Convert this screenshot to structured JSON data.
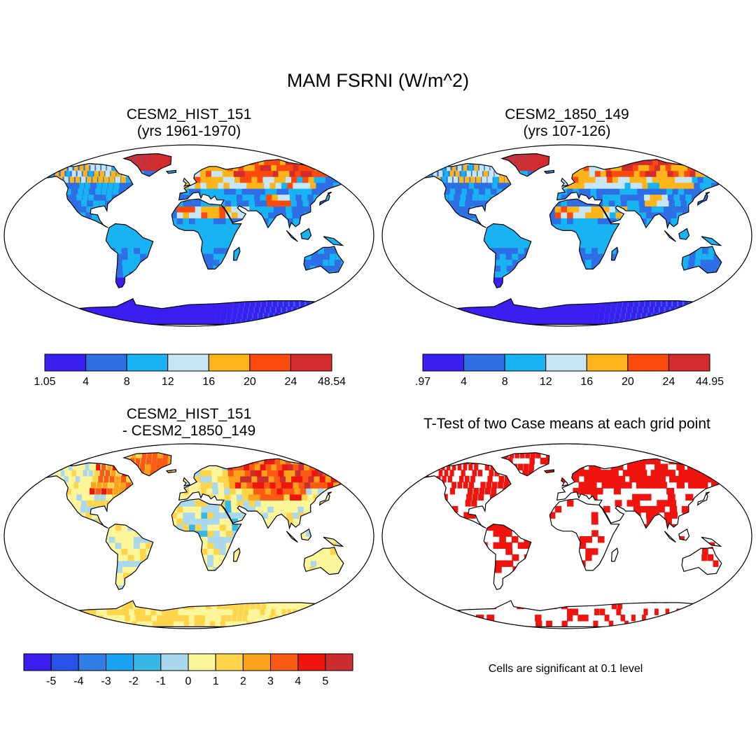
{
  "figure": {
    "title": "MAM FSRNI (W/m^2)",
    "footnote": "Cells are significant at 0.1 level"
  },
  "panels": [
    {
      "id": "hist",
      "title_line1": "CESM2_HIST_151",
      "title_line2": "(yrs 1961-1970)",
      "colorbar": {
        "colors": [
          "#3a1ff0",
          "#2f6fe6",
          "#18b3f2",
          "#c6e6f4",
          "#fbb419",
          "#fc4a0c",
          "#d42b2c"
        ],
        "labels": [
          "1.05",
          "4",
          "8",
          "12",
          "16",
          "20",
          "24",
          "48.54"
        ]
      }
    },
    {
      "id": "pi",
      "title_line1": "CESM2_1850_149",
      "title_line2": "(yrs 107-126)",
      "colorbar": {
        "colors": [
          "#3a1ff0",
          "#2f6fe6",
          "#18b3f2",
          "#c6e6f4",
          "#fbb419",
          "#fc4a0c",
          "#d42b2c"
        ],
        "labels": [
          ".97",
          "4",
          "8",
          "12",
          "16",
          "20",
          "24",
          "44.95"
        ]
      }
    },
    {
      "id": "diff",
      "title_line1": "CESM2_HIST_151",
      "title_line2": "- CESM2_1850_149",
      "colorbar": {
        "colors": [
          "#3a1ff0",
          "#2b52e6",
          "#2f7ee8",
          "#19a3f0",
          "#36b7e6",
          "#a9d8ef",
          "#fdf59a",
          "#fed54a",
          "#fba11a",
          "#fb5a14",
          "#f0140f",
          "#cc2d2e"
        ],
        "labels": [
          "-5",
          "-4",
          "-3",
          "-2",
          "-1",
          "0",
          "1",
          "2",
          "3",
          "4",
          "5"
        ]
      }
    },
    {
      "id": "ttest",
      "title_line1": "T-Test of two Case means at each grid point",
      "title_line2": ""
    }
  ],
  "map_colors": {
    "land_hist": "#2f6fe6",
    "land_diff": "#fdf59a",
    "significant": "#f0140f",
    "outline": "#000000"
  }
}
